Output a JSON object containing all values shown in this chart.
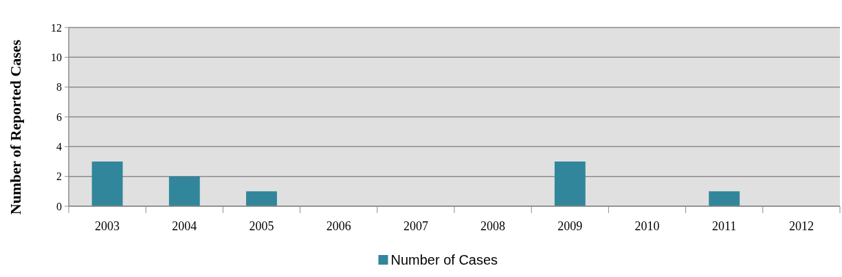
{
  "chart_data": {
    "type": "bar",
    "ylabel": "Number of Reported Cases",
    "categories": [
      "2003",
      "2004",
      "2005",
      "2006",
      "2007",
      "2008",
      "2009",
      "2010",
      "2011",
      "2012"
    ],
    "series": [
      {
        "name": "Number of Cases",
        "color": "#31869b",
        "values": [
          3,
          2,
          1,
          0,
          0,
          0,
          3,
          0,
          1,
          0
        ]
      }
    ],
    "ylim": [
      0,
      12
    ],
    "yticks": [
      0,
      2,
      4,
      6,
      8,
      10,
      12
    ],
    "grid": "y",
    "legend": "bottom"
  }
}
